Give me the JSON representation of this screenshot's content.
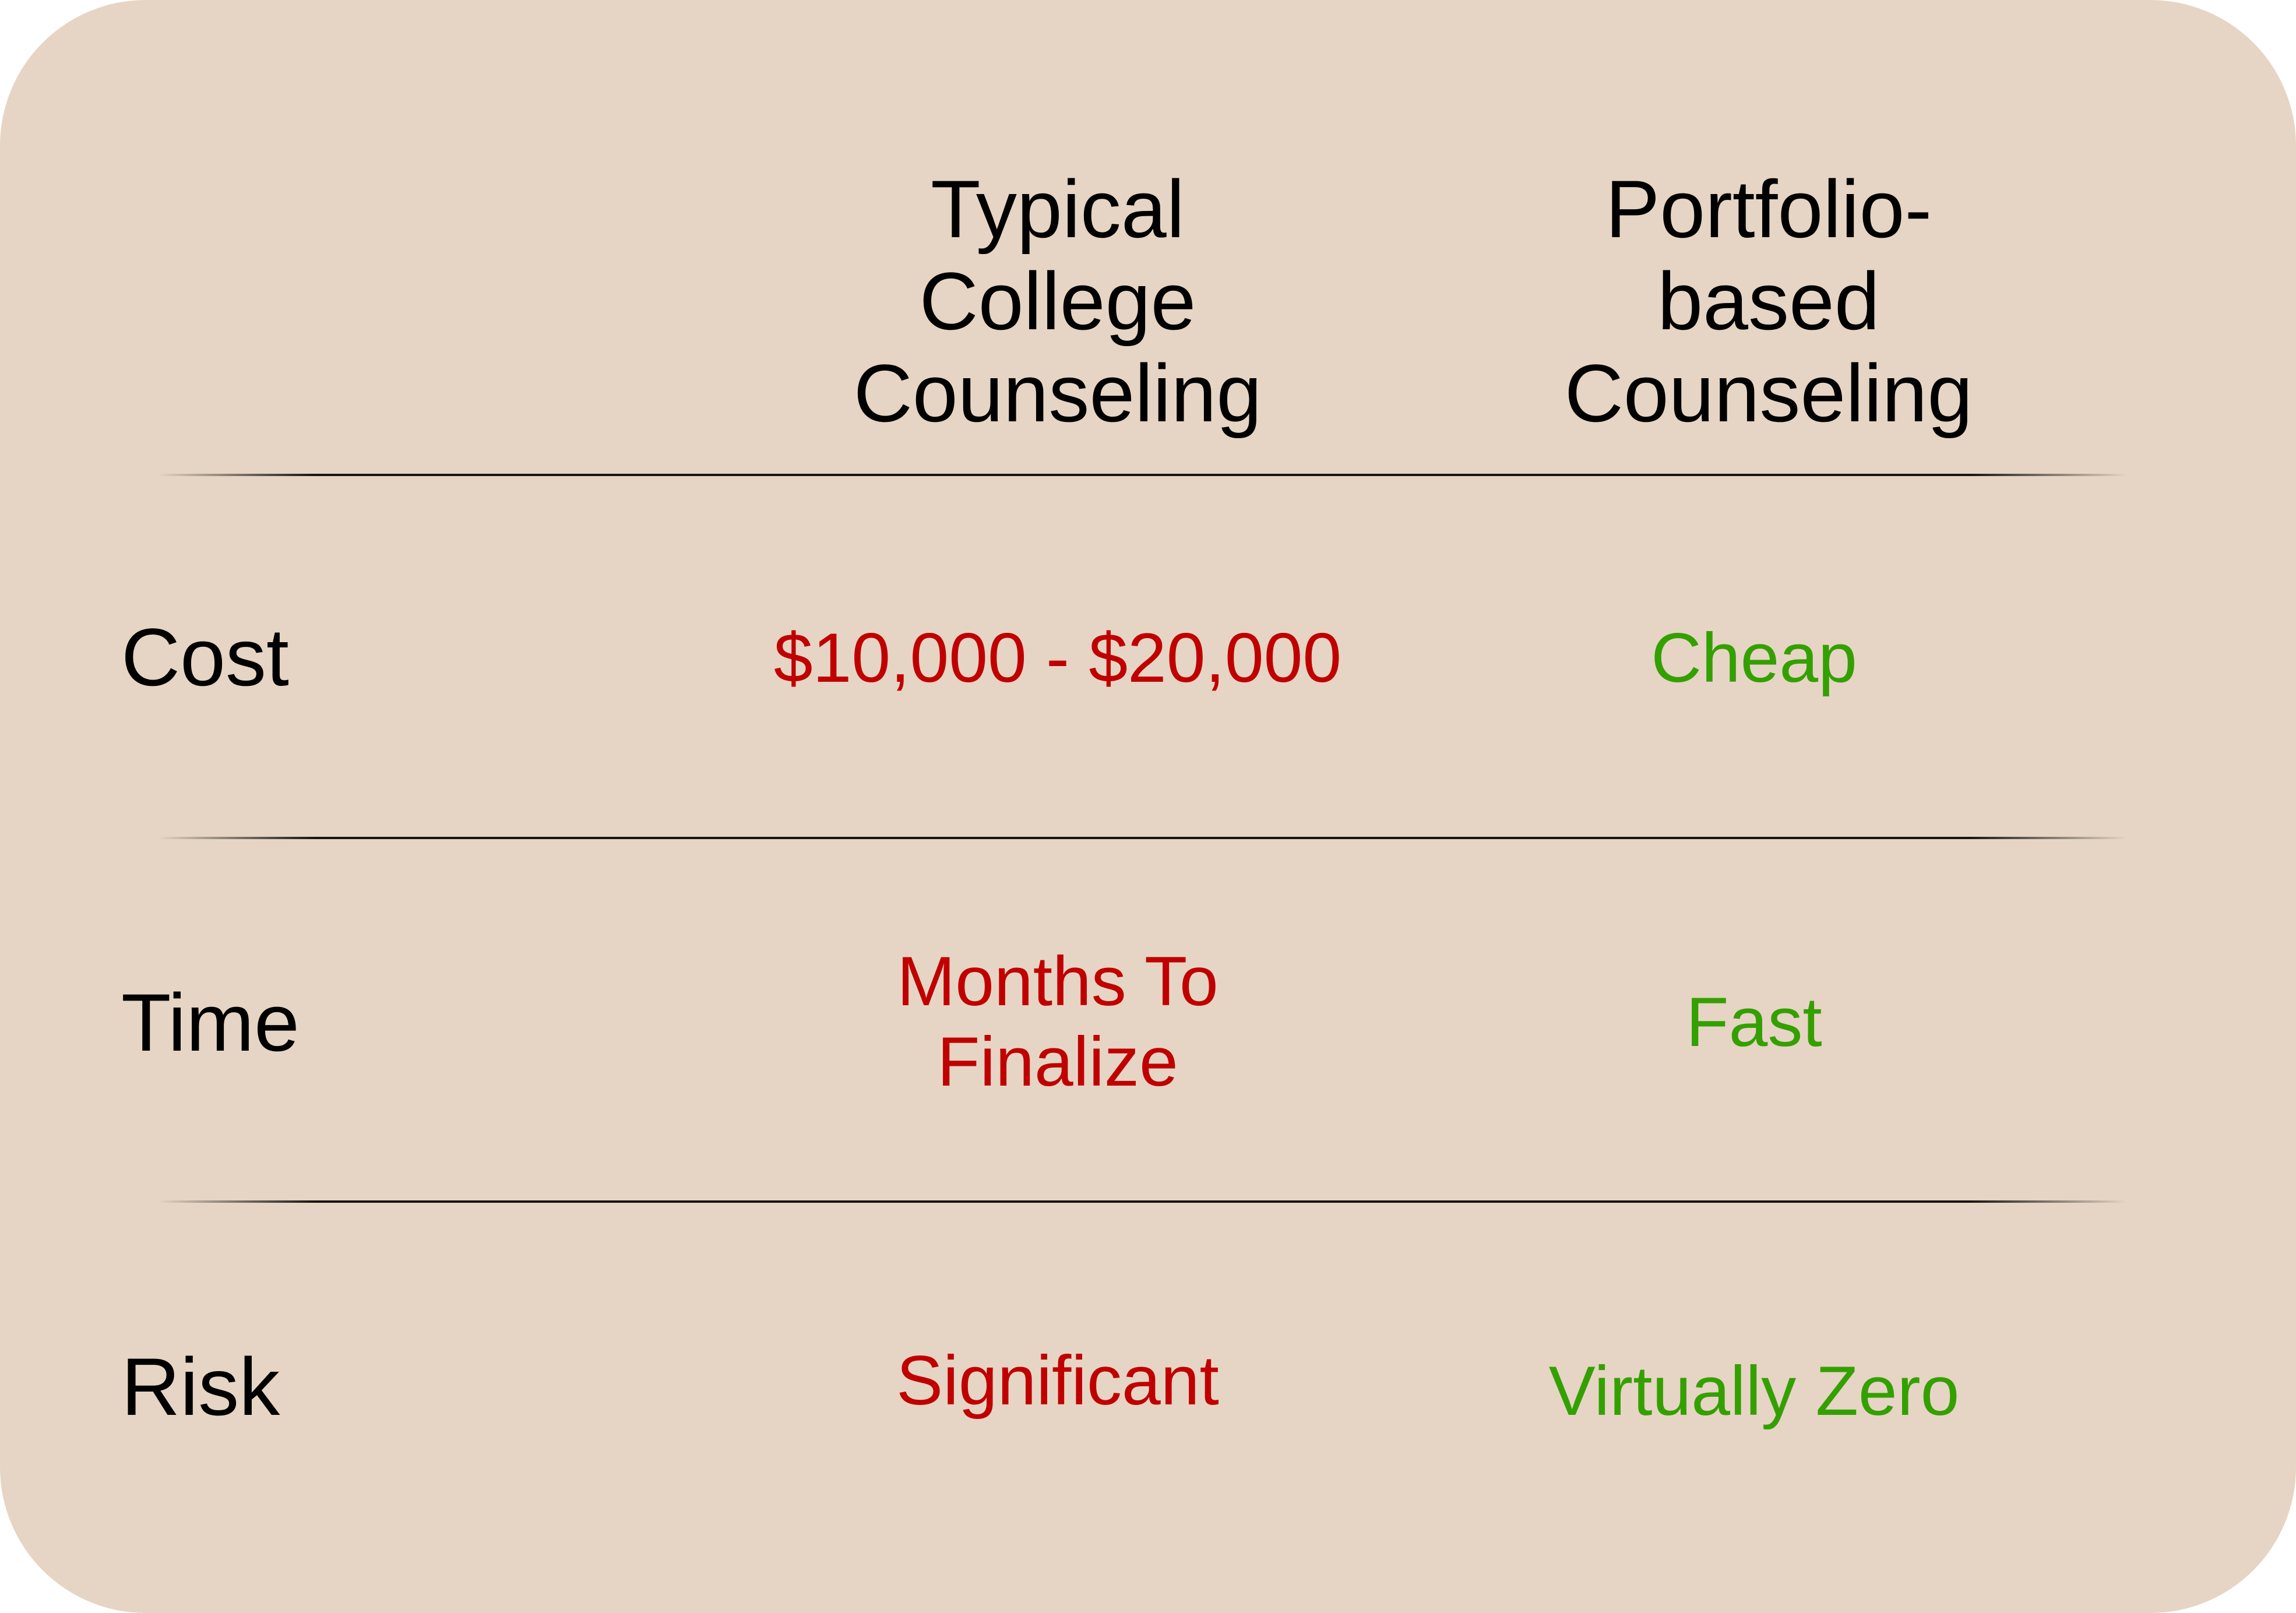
{
  "colors": {
    "background": "#e6d5c4",
    "negative": "#c00000",
    "positive": "#34a000",
    "text": "#000000"
  },
  "headers": {
    "typical": "Typical\nCollege\nCounseling",
    "portfolio": "Portfolio-\nbased\nCounseling"
  },
  "rows": [
    {
      "label": "Cost",
      "typical": "$10,000 - $20,000",
      "portfolio": "Cheap"
    },
    {
      "label": "Time",
      "typical": "Months To\nFinalize",
      "portfolio": "Fast"
    },
    {
      "label": "Risk",
      "typical": "Significant",
      "portfolio": "Virtually Zero"
    }
  ]
}
